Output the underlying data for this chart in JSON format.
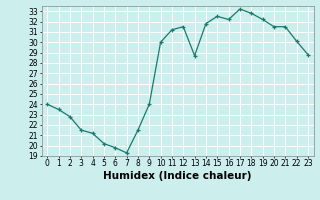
{
  "x": [
    0,
    1,
    2,
    3,
    4,
    5,
    6,
    7,
    8,
    9,
    10,
    11,
    12,
    13,
    14,
    15,
    16,
    17,
    18,
    19,
    20,
    21,
    22,
    23
  ],
  "y": [
    24.0,
    23.5,
    22.8,
    21.5,
    21.2,
    20.2,
    19.8,
    19.3,
    21.5,
    24.0,
    30.0,
    31.2,
    31.5,
    28.7,
    31.8,
    32.5,
    32.2,
    33.2,
    32.8,
    32.2,
    31.5,
    31.5,
    30.1,
    28.8
  ],
  "line_color": "#1a7a6e",
  "marker": "+",
  "marker_size": 3,
  "xlabel": "Humidex (Indice chaleur)",
  "xlim": [
    -0.5,
    23.5
  ],
  "ylim": [
    19,
    33.5
  ],
  "yticks": [
    19,
    20,
    21,
    22,
    23,
    24,
    25,
    26,
    27,
    28,
    29,
    30,
    31,
    32,
    33
  ],
  "xticks": [
    0,
    1,
    2,
    3,
    4,
    5,
    6,
    7,
    8,
    9,
    10,
    11,
    12,
    13,
    14,
    15,
    16,
    17,
    18,
    19,
    20,
    21,
    22,
    23
  ],
  "bg_color": "#cceeed",
  "grid_color": "#ffffff",
  "tick_label_fontsize": 5.5,
  "xlabel_fontsize": 7.5,
  "linewidth": 0.9,
  "markeredgewidth": 0.9
}
